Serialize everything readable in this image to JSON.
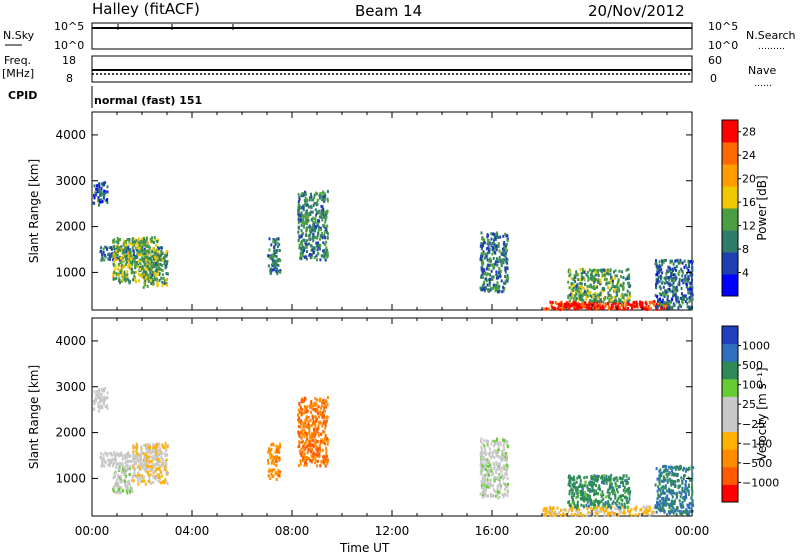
{
  "header": {
    "title": "Halley (fitACF)",
    "beam": "Beam 14",
    "date": "20/Nov/2012"
  },
  "left_labels": {
    "nsky": "N.Sky",
    "freq": "Freq.",
    "freq_unit": "[MHz]",
    "cpid": "CPID"
  },
  "right_labels": {
    "nsearch": "N.Search",
    "nsearch_dots": "………",
    "nave": "Nave",
    "nave_dots": "……"
  },
  "noise_ticks": {
    "left_top": "10^5",
    "left_bottom": "10^0",
    "right_top": "10^5",
    "right_bottom": "10^0"
  },
  "freq_ticks": {
    "left_top": "18",
    "left_bottom": "8",
    "right_top": "60",
    "right_bottom": "0"
  },
  "cpid_text": "normal (fast) 151",
  "colors": {
    "axis": "#000000",
    "power_scale": [
      "#0000ff",
      "#1f3fb0",
      "#2e7d6b",
      "#4aa040",
      "#f0c800",
      "#ff9d00",
      "#ff6a00",
      "#ff0000"
    ],
    "velocity_scale": [
      "#ff0000",
      "#ff5a00",
      "#ff8c00",
      "#ffb000",
      "#c8c8c8",
      "#c8c8c8",
      "#66cc33",
      "#2e8b57",
      "#2f6fbf",
      "#1f3fbf"
    ]
  },
  "chart_data": [
    {
      "type": "heatmap",
      "title": "Power",
      "ylabel": "Slant Range [km]",
      "xlabel": "Time UT",
      "x_ticks": [
        "00:00",
        "04:00",
        "08:00",
        "12:00",
        "16:00",
        "20:00",
        "00:00"
      ],
      "y_ticks": [
        1000,
        2000,
        3000,
        4000
      ],
      "ylim": [
        180,
        4500
      ],
      "xlim_hours": [
        0,
        24
      ],
      "colorbar": {
        "label": "Power [dB]",
        "ticks": [
          4,
          8,
          12,
          16,
          20,
          24,
          28
        ],
        "range": [
          0,
          30
        ]
      },
      "regions": [
        {
          "t0": 0.0,
          "t1": 0.6,
          "r0": 2500,
          "r1": 3000,
          "value": 6
        },
        {
          "t0": 0.3,
          "t1": 2.8,
          "r0": 1300,
          "r1": 1600,
          "value": 9
        },
        {
          "t0": 0.8,
          "t1": 2.6,
          "r0": 800,
          "r1": 1800,
          "value": 14
        },
        {
          "t0": 2.0,
          "t1": 3.0,
          "r0": 700,
          "r1": 1500,
          "value": 12
        },
        {
          "t0": 7.0,
          "t1": 7.5,
          "r0": 1000,
          "r1": 1800,
          "value": 8
        },
        {
          "t0": 8.2,
          "t1": 9.4,
          "r0": 1300,
          "r1": 2800,
          "value": 10
        },
        {
          "t0": 15.5,
          "t1": 16.6,
          "r0": 600,
          "r1": 1900,
          "value": 9
        },
        {
          "t0": 18.0,
          "t1": 23.0,
          "r0": 220,
          "r1": 400,
          "value": 27
        },
        {
          "t0": 18.6,
          "t1": 22.2,
          "r0": 230,
          "r1": 380,
          "value": 29
        },
        {
          "t0": 19.0,
          "t1": 21.5,
          "r0": 380,
          "r1": 1100,
          "value": 12
        },
        {
          "t0": 22.5,
          "t1": 24.0,
          "r0": 250,
          "r1": 1300,
          "value": 8
        }
      ]
    },
    {
      "type": "heatmap",
      "title": "Velocity",
      "ylabel": "Slant Range [km]",
      "xlabel": "Time UT",
      "x_ticks": [
        "00:00",
        "04:00",
        "08:00",
        "12:00",
        "16:00",
        "20:00",
        "00:00"
      ],
      "y_ticks": [
        1000,
        2000,
        3000,
        4000
      ],
      "ylim": [
        180,
        4500
      ],
      "xlim_hours": [
        0,
        24
      ],
      "colorbar": {
        "label": "Velocity [m s⁻¹]",
        "ticks": [
          1000,
          500,
          100,
          25,
          -25,
          -100,
          -500,
          -1000
        ],
        "range": [
          -1200,
          1200
        ]
      },
      "regions": [
        {
          "t0": 0.0,
          "t1": 0.6,
          "r0": 2500,
          "r1": 3000,
          "value": 0
        },
        {
          "t0": 0.3,
          "t1": 2.8,
          "r0": 1300,
          "r1": 1600,
          "value": 0
        },
        {
          "t0": 0.8,
          "t1": 1.6,
          "r0": 700,
          "r1": 1300,
          "value": 150
        },
        {
          "t0": 1.6,
          "t1": 3.0,
          "r0": 900,
          "r1": 1800,
          "value": -200
        },
        {
          "t0": 7.0,
          "t1": 7.5,
          "r0": 1000,
          "r1": 1800,
          "value": -600
        },
        {
          "t0": 8.2,
          "t1": 9.4,
          "r0": 1300,
          "r1": 2800,
          "value": -700
        },
        {
          "t0": 15.5,
          "t1": 16.6,
          "r0": 600,
          "r1": 1900,
          "value": 150
        },
        {
          "t0": 18.0,
          "t1": 22.5,
          "r0": 220,
          "r1": 420,
          "value": -300
        },
        {
          "t0": 19.0,
          "t1": 21.5,
          "r0": 380,
          "r1": 1100,
          "value": 600
        },
        {
          "t0": 22.5,
          "t1": 24.0,
          "r0": 250,
          "r1": 1300,
          "value": 700
        }
      ]
    }
  ]
}
